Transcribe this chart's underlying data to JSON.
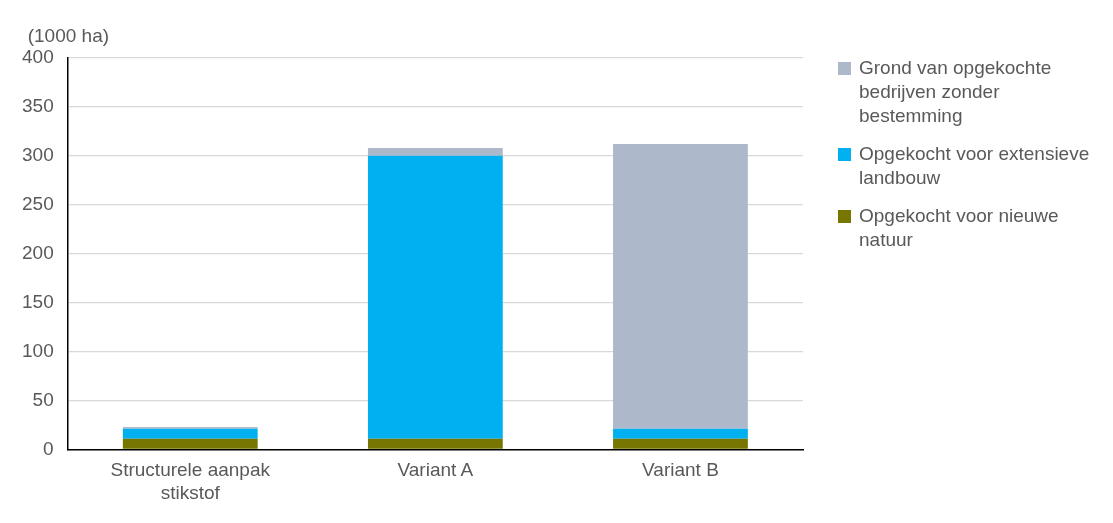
{
  "chart_data": {
    "type": "bar",
    "ylabel": "(1000 ha)",
    "categories": [
      "Structurele aanpak stikstof",
      "Variant A",
      "Variant B"
    ],
    "stacked": true,
    "series": [
      {
        "name": "Opgekocht voor nieuwe natuur",
        "color": "#767600",
        "values": [
          11,
          11,
          11
        ]
      },
      {
        "name": "Opgekocht voor extensieve landbouw",
        "color": "#00b0f0",
        "values": [
          10,
          289,
          10
        ]
      },
      {
        "name": "Grond van opgekochte bedrijven zonder bestemming",
        "color": "#adb9ca",
        "values": [
          2,
          8,
          291
        ]
      }
    ],
    "ylim": [
      0,
      400
    ],
    "yticks": [
      0,
      50,
      100,
      150,
      200,
      250,
      300,
      350,
      400
    ],
    "grid": "y",
    "legend": "right"
  }
}
